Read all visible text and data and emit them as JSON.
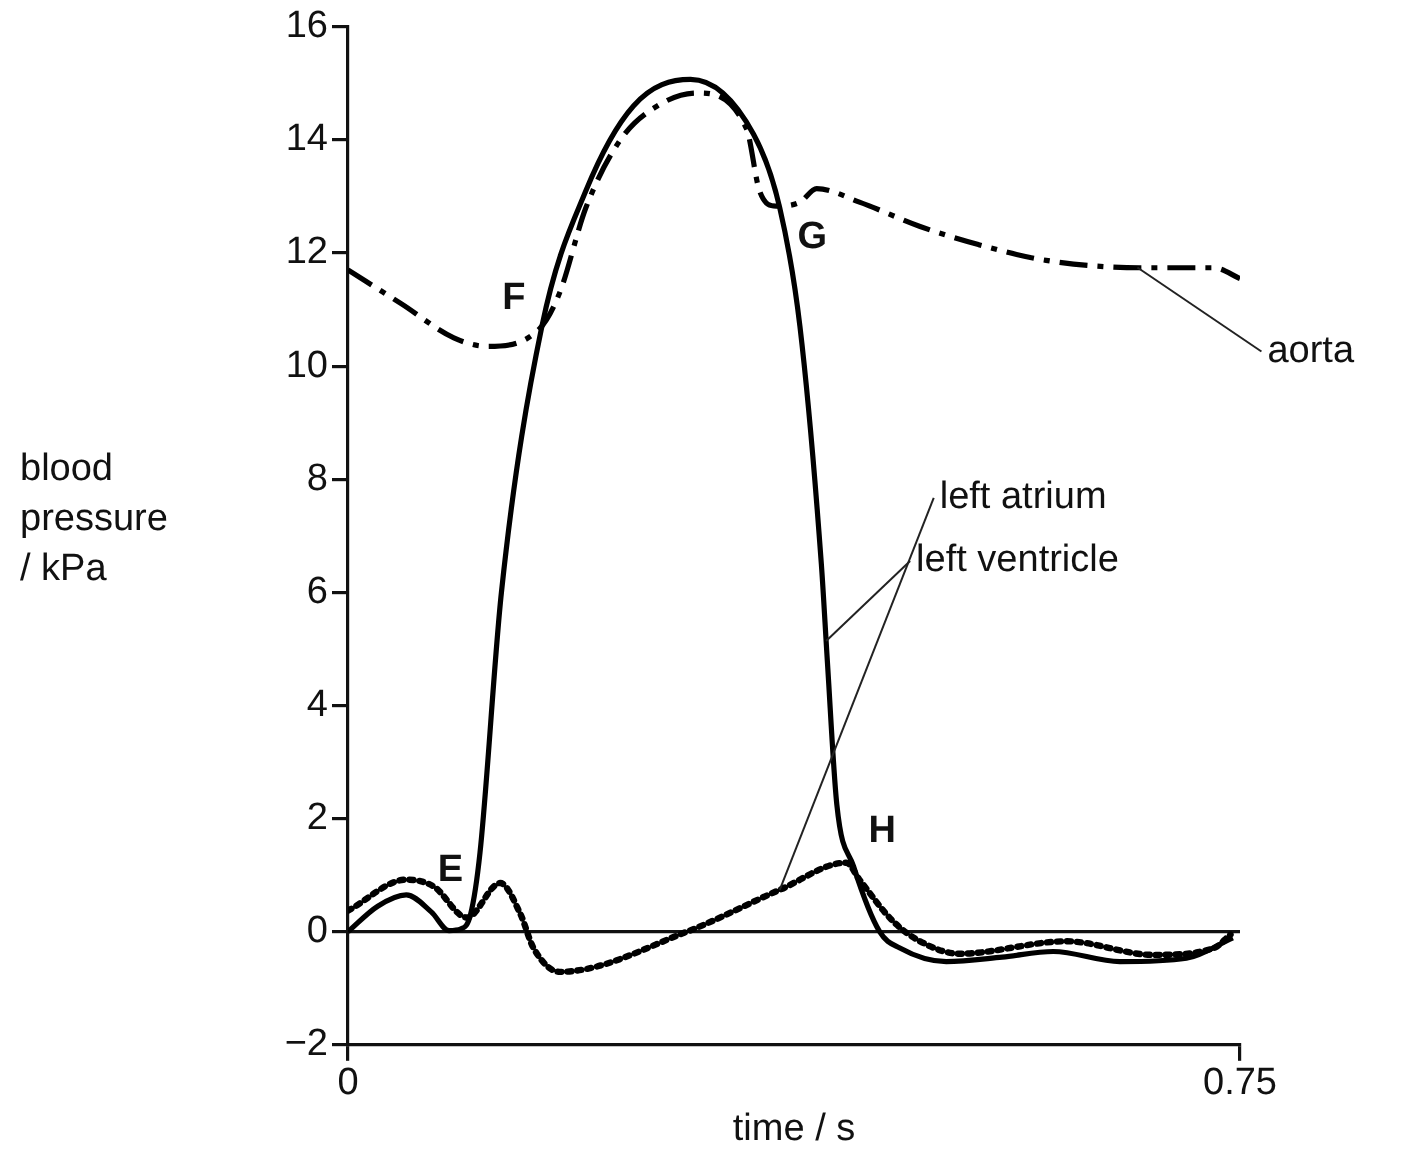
{
  "chart_data": {
    "type": "line",
    "xlabel": "time / s",
    "ylabel": "blood pressure / kPa",
    "xlim": [
      0,
      0.75
    ],
    "xticks": [
      0,
      0.75
    ],
    "ylim": [
      -2,
      16
    ],
    "yticks": [
      -2,
      0,
      2,
      4,
      6,
      8,
      10,
      12,
      14,
      16
    ],
    "grid": false,
    "legend": false,
    "marker": "none",
    "ref_lines": [
      {
        "axis": "y",
        "value": 0
      }
    ],
    "annotations": [
      {
        "text": "E",
        "x": 0.103,
        "y": 0.3
      },
      {
        "text": "F",
        "x": 0.163,
        "y": 10.7
      },
      {
        "text": "G",
        "x": 0.36,
        "y": 12.8
      },
      {
        "text": "H",
        "x": 0.419,
        "y": 1.2
      }
    ],
    "series": [
      {
        "name": "aorta",
        "color": "#000000",
        "line_style": "dashdot",
        "x": [
          0,
          0.045,
          0.089,
          0.117,
          0.161,
          0.178,
          0.2,
          0.229,
          0.26,
          0.293,
          0.335,
          0.346,
          0.36,
          0.38,
          0.394,
          0.43,
          0.481,
          0.53,
          0.587,
          0.666,
          0.728,
          0.75
        ],
        "values": [
          11.7,
          11.1,
          10.5,
          10.35,
          10.66,
          11.3,
          12.8,
          14.0,
          14.6,
          14.83,
          14.2,
          13.1,
          12.83,
          12.9,
          13.14,
          12.9,
          12.47,
          12.15,
          11.87,
          11.74,
          11.74,
          11.55
        ]
      },
      {
        "name": "left ventricle",
        "color": "#000000",
        "line_style": "solid",
        "x": [
          0,
          0.025,
          0.049,
          0.07,
          0.085,
          0.095,
          0.103,
          0.111,
          0.129,
          0.163,
          0.2,
          0.24,
          0.288,
          0.341,
          0.363,
          0.38,
          0.398,
          0.403,
          0.411,
          0.425,
          0.447,
          0.464,
          0.503,
          0.55,
          0.593,
          0.649,
          0.705,
          0.744
        ],
        "values": [
          0,
          0.45,
          0.65,
          0.35,
          0.02,
          0.05,
          0.3,
          1.4,
          6.0,
          10.7,
          13.1,
          14.6,
          15.07,
          14.1,
          12.8,
          10.7,
          6.5,
          4.8,
          2.25,
          1.16,
          0,
          -0.29,
          -0.53,
          -0.45,
          -0.35,
          -0.53,
          -0.47,
          -0.11
        ]
      },
      {
        "name": "left atrium",
        "color": "#000000",
        "line_style": "dotted",
        "x": [
          0,
          0.049,
          0.072,
          0.1,
          0.128,
          0.145,
          0.156,
          0.178,
          0.285,
          0.363,
          0.419,
          0.43,
          0.458,
          0.481,
          0.514,
          0.604,
          0.677,
          0.728,
          0.742
        ],
        "values": [
          0.37,
          0.92,
          0.8,
          0.25,
          0.86,
          0.31,
          -0.29,
          -0.71,
          0,
          0.74,
          1.22,
          0.92,
          0.19,
          -0.17,
          -0.39,
          -0.17,
          -0.41,
          -0.29,
          -0.05
        ]
      }
    ]
  }
}
